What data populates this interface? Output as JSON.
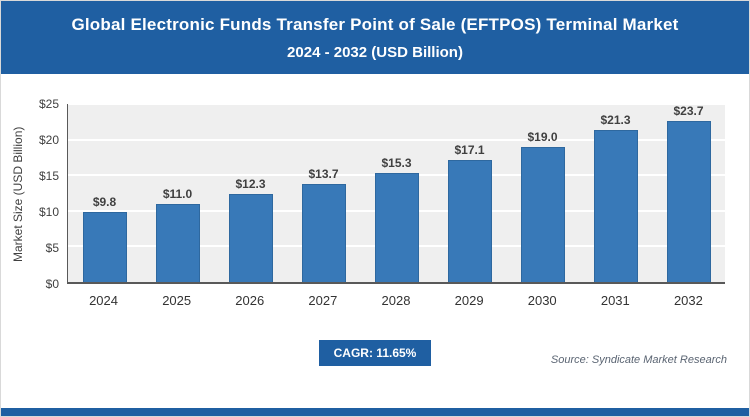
{
  "header": {
    "title_line1": "Global Electronic Funds Transfer Point of Sale (EFTPOS) Terminal Market",
    "title_line2": "2024 - 2032 (USD Billion)"
  },
  "chart_data": {
    "type": "bar",
    "title": "Global Electronic Funds Transfer Point of Sale (EFTPOS) Terminal Market 2024 - 2032 (USD Billion)",
    "categories": [
      "2024",
      "2025",
      "2026",
      "2027",
      "2028",
      "2029",
      "2030",
      "2031",
      "2032"
    ],
    "values": [
      9.8,
      11.0,
      12.3,
      13.7,
      15.3,
      17.1,
      19.0,
      21.3,
      23.7
    ],
    "data_labels": [
      "$9.8",
      "$11.0",
      "$12.3",
      "$13.7",
      "$15.3",
      "$17.1",
      "$19.0",
      "$21.3",
      "$23.7"
    ],
    "xlabel": "",
    "ylabel": "Market Size (USD Billion)",
    "ylim": [
      0,
      25
    ],
    "y_ticks": [
      0,
      5,
      10,
      15,
      20,
      25
    ],
    "y_tick_labels": [
      "$0",
      "$5",
      "$10",
      "$15",
      "$20",
      "$25"
    ],
    "grid": true,
    "legend": false,
    "bar_color": "#3879B8",
    "plot_bg": "#EFEFEF"
  },
  "footer": {
    "cagr_label": "CAGR: 11.65%",
    "source": "Source: Syndicate Market Research"
  },
  "colors": {
    "header_bg": "#1F5FA2",
    "accent": "#1F5FA2"
  }
}
